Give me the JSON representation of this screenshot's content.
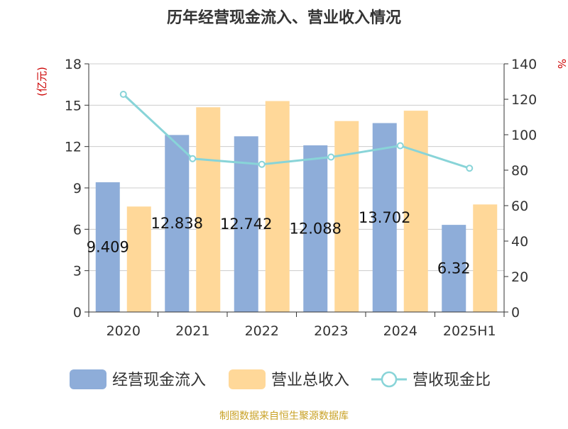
{
  "chart_data": {
    "type": "bar",
    "title": "历年经营现金流入、营业收入情况",
    "categories": [
      "2020",
      "2021",
      "2022",
      "2023",
      "2024",
      "2025H1"
    ],
    "y_left": {
      "unit_label": "(亿元)",
      "range": [
        0,
        18
      ],
      "ticks": [
        "0",
        "3",
        "6",
        "9",
        "12",
        "15",
        "18"
      ]
    },
    "y_right": {
      "unit_label": "%",
      "range": [
        0,
        140
      ],
      "ticks": [
        "0",
        "20",
        "40",
        "60",
        "80",
        "100",
        "120",
        "140"
      ]
    },
    "series": [
      {
        "name": "经营现金流入",
        "kind": "bar",
        "axis": "left",
        "color": "#8eadd9",
        "values": [
          9.409,
          12.838,
          12.742,
          12.088,
          13.702,
          6.32
        ],
        "labels": [
          "9.409",
          "12.838",
          "12.742",
          "12.088",
          "13.702",
          "6.32"
        ]
      },
      {
        "name": "营业总收入",
        "kind": "bar",
        "axis": "left",
        "color": "#ffd899",
        "values": [
          7.65,
          14.85,
          15.3,
          13.85,
          14.6,
          7.8
        ]
      },
      {
        "name": "营收现金比",
        "kind": "line",
        "axis": "right",
        "color": "#88d4d8",
        "values": [
          122.8,
          86.5,
          83.3,
          87.4,
          93.8,
          81.1
        ]
      }
    ],
    "grid": true,
    "legend": "bottom",
    "source": "制图数据来自恒生聚源数据库"
  }
}
